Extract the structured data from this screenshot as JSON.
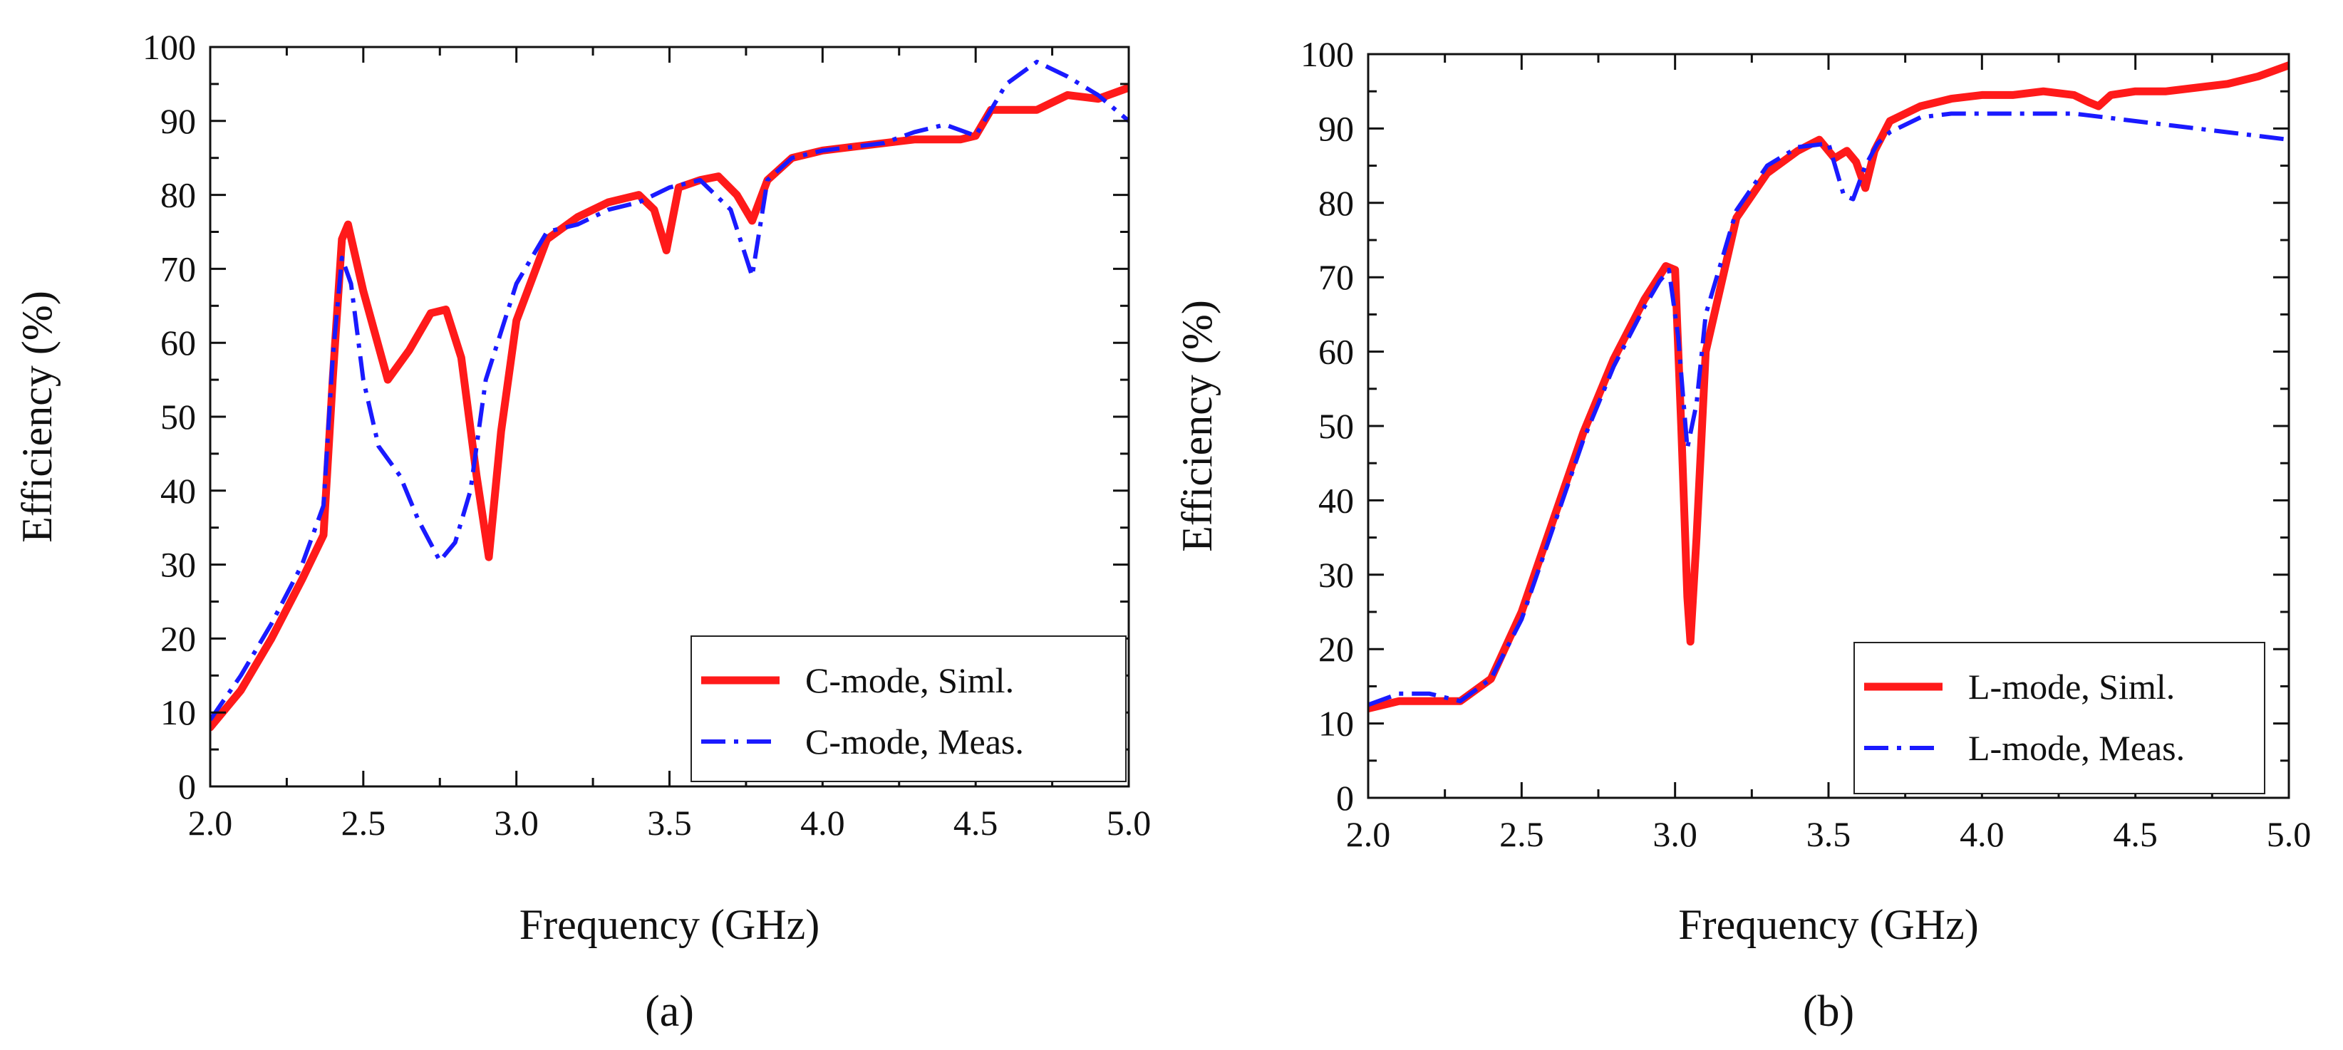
{
  "chart_data": [
    {
      "type": "line",
      "panel_label": "(a)",
      "xlabel": "Frequency (GHz)",
      "ylabel": "Efficiency (%)",
      "xlim": [
        2.0,
        5.0
      ],
      "ylim": [
        0,
        100
      ],
      "xticks": [
        "2.0",
        "2.5",
        "3.0",
        "3.5",
        "4.0",
        "4.5",
        "5.0"
      ],
      "yticks": [
        "0",
        "10",
        "20",
        "30",
        "40",
        "50",
        "60",
        "70",
        "80",
        "90",
        "100"
      ],
      "grid": false,
      "legend_position": "bottom-right",
      "series": [
        {
          "name": "C-mode, Siml.",
          "color": "#ff1a1a",
          "style": "solid",
          "x": [
            2.0,
            2.1,
            2.2,
            2.3,
            2.37,
            2.4,
            2.43,
            2.45,
            2.5,
            2.58,
            2.65,
            2.72,
            2.77,
            2.82,
            2.87,
            2.91,
            2.95,
            3.0,
            3.1,
            3.2,
            3.3,
            3.4,
            3.45,
            3.49,
            3.53,
            3.6,
            3.66,
            3.72,
            3.77,
            3.82,
            3.9,
            4.0,
            4.1,
            4.2,
            4.3,
            4.4,
            4.45,
            4.5,
            4.55,
            4.7,
            4.8,
            4.9,
            5.0
          ],
          "y": [
            8,
            13,
            20,
            28,
            34,
            55,
            74,
            76,
            67,
            55,
            59,
            64,
            64.5,
            58,
            42,
            31,
            48,
            63,
            74,
            77,
            79,
            80,
            78,
            72.5,
            81,
            82,
            82.5,
            80,
            76.5,
            82,
            85,
            86,
            86.5,
            87,
            87.5,
            87.5,
            87.5,
            88,
            91.5,
            91.5,
            93.5,
            93,
            94.5
          ]
        },
        {
          "name": "C-mode, Meas.",
          "color": "#1a1aff",
          "style": "dashdot",
          "x": [
            2.0,
            2.1,
            2.2,
            2.3,
            2.37,
            2.4,
            2.43,
            2.46,
            2.5,
            2.55,
            2.62,
            2.68,
            2.75,
            2.8,
            2.85,
            2.9,
            3.0,
            3.1,
            3.2,
            3.3,
            3.4,
            3.5,
            3.6,
            3.7,
            3.77,
            3.82,
            3.9,
            4.0,
            4.2,
            4.3,
            4.4,
            4.5,
            4.6,
            4.7,
            4.8,
            4.9,
            5.0
          ],
          "y": [
            9,
            15,
            22,
            30,
            38,
            58,
            71.5,
            68,
            55,
            46,
            42,
            36,
            30.5,
            33,
            40,
            55,
            68,
            75,
            76,
            78,
            79,
            81,
            82,
            78,
            69,
            82,
            85,
            86,
            87,
            88.5,
            89.5,
            88,
            95,
            98,
            96,
            93.5,
            90
          ]
        }
      ]
    },
    {
      "type": "line",
      "panel_label": "(b)",
      "xlabel": "Frequency (GHz)",
      "ylabel": "Efficiency (%)",
      "xlim": [
        2.0,
        5.0
      ],
      "ylim": [
        0,
        100
      ],
      "xticks": [
        "2.0",
        "2.5",
        "3.0",
        "3.5",
        "4.0",
        "4.5",
        "5.0"
      ],
      "yticks": [
        "0",
        "10",
        "20",
        "30",
        "40",
        "50",
        "60",
        "70",
        "80",
        "90",
        "100"
      ],
      "grid": false,
      "legend_position": "bottom-right",
      "series": [
        {
          "name": "L-mode, Siml.",
          "color": "#ff1a1a",
          "style": "solid",
          "x": [
            2.0,
            2.1,
            2.2,
            2.3,
            2.4,
            2.5,
            2.6,
            2.7,
            2.8,
            2.9,
            2.97,
            3.0,
            3.02,
            3.04,
            3.05,
            3.07,
            3.1,
            3.2,
            3.3,
            3.4,
            3.47,
            3.52,
            3.56,
            3.59,
            3.62,
            3.65,
            3.7,
            3.8,
            3.9,
            4.0,
            4.1,
            4.2,
            4.3,
            4.35,
            4.38,
            4.42,
            4.5,
            4.6,
            4.7,
            4.8,
            4.9,
            5.0
          ],
          "y": [
            12,
            13,
            13,
            13,
            16,
            25,
            37,
            49,
            59,
            67,
            71.5,
            71,
            50,
            27,
            21,
            35,
            60,
            78,
            84,
            87,
            88.5,
            86,
            87,
            85.5,
            82,
            87,
            91,
            93,
            94,
            94.5,
            94.5,
            95,
            94.5,
            93.5,
            93,
            94.5,
            95,
            95,
            95.5,
            96,
            97,
            98.5
          ]
        },
        {
          "name": "L-mode, Meas.",
          "color": "#1a1aff",
          "style": "dashdot",
          "x": [
            2.0,
            2.1,
            2.2,
            2.3,
            2.4,
            2.5,
            2.6,
            2.7,
            2.8,
            2.9,
            2.95,
            2.98,
            3.01,
            3.04,
            3.07,
            3.1,
            3.2,
            3.3,
            3.4,
            3.5,
            3.55,
            3.58,
            3.62,
            3.66,
            3.7,
            3.8,
            3.9,
            4.0,
            4.1,
            4.2,
            4.3,
            4.4,
            4.5,
            4.6,
            4.7,
            4.8,
            4.9,
            5.0
          ],
          "y": [
            12.5,
            14,
            14,
            13,
            16,
            24,
            36,
            48,
            58,
            66,
            69.5,
            71,
            62,
            47,
            53,
            65,
            79,
            85,
            87.5,
            88,
            81,
            80.5,
            85,
            88,
            89.5,
            91.5,
            92,
            92,
            92,
            92,
            92,
            91.5,
            91,
            90.5,
            90,
            89.5,
            89,
            88.5
          ]
        }
      ]
    }
  ]
}
